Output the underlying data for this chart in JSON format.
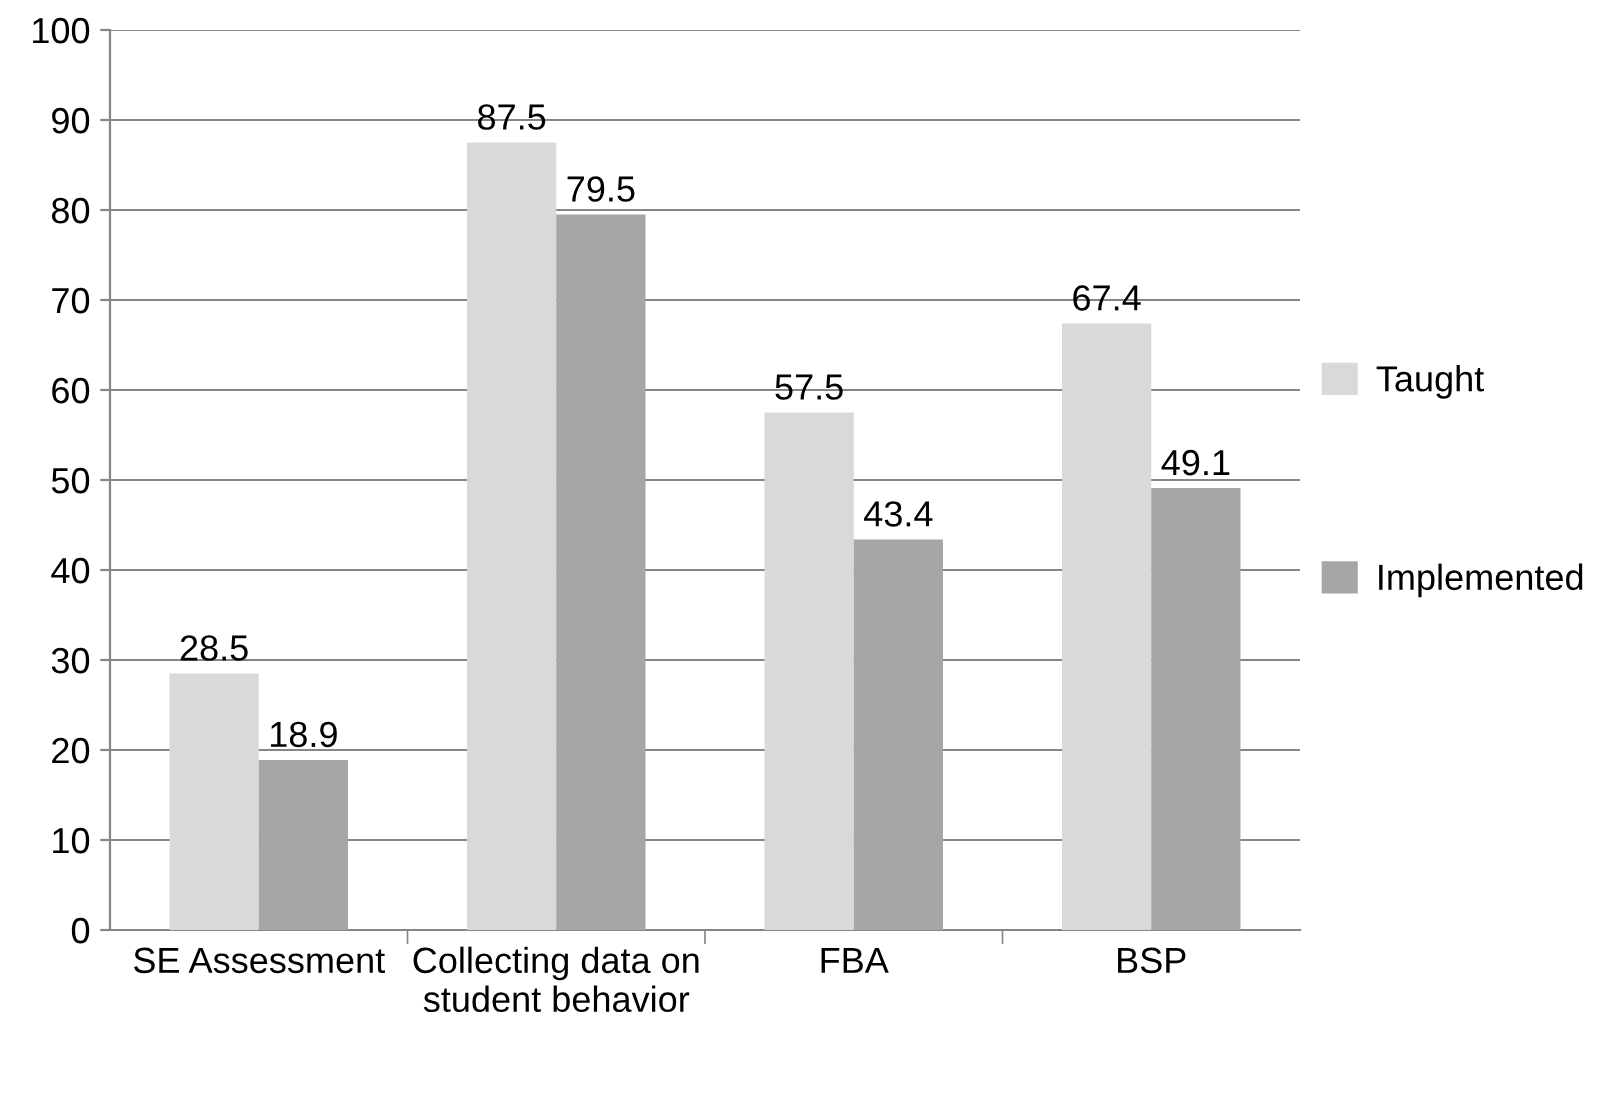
{
  "chart_data": {
    "type": "bar",
    "categories": [
      "SE Assessment",
      "Collecting data on student behavior",
      "FBA",
      "BSP"
    ],
    "series": [
      {
        "name": "Taught",
        "color": "#d9d9d9",
        "values": [
          28.5,
          87.5,
          57.5,
          67.4
        ]
      },
      {
        "name": "Implemented",
        "color": "#a6a6a6",
        "values": [
          18.9,
          79.5,
          43.4,
          49.1
        ]
      }
    ],
    "ylim": [
      0,
      100
    ],
    "yticks": [
      0,
      10,
      20,
      30,
      40,
      50,
      60,
      70,
      80,
      90,
      100
    ],
    "grid": "y",
    "legend": "right",
    "data_labels": true
  }
}
